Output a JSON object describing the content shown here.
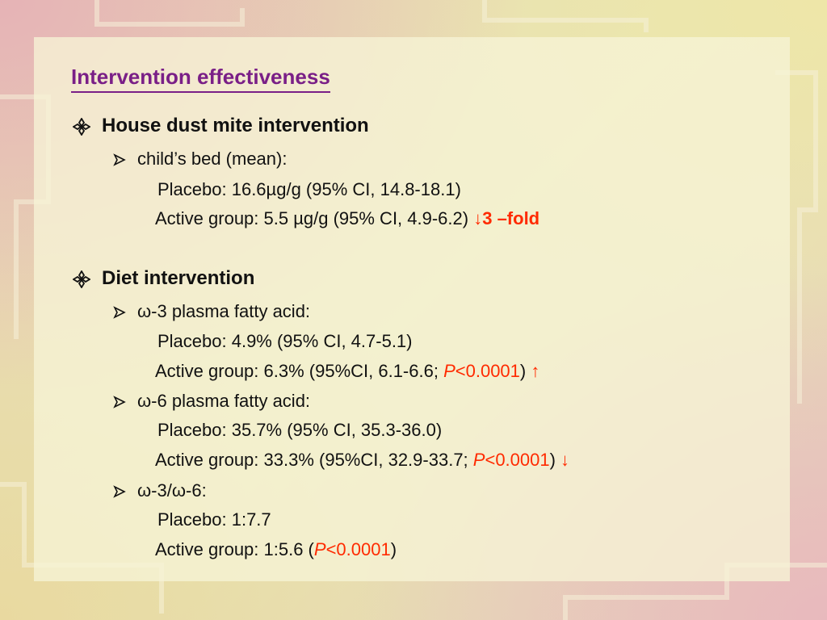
{
  "slide": {
    "title": "Intervention effectiveness",
    "section_mite": {
      "heading": "House dust mite intervention",
      "sub": {
        "label": "child’s bed (mean):",
        "placebo": "Placebo: 16.6µg/g (95% CI, 14.8-18.1)",
        "active": "Active group: 5.5 µg/g  (95% CI, 4.9-6.2) ",
        "active_change": "↓3 –fold"
      }
    },
    "section_diet": {
      "heading": "Diet intervention",
      "omega3": {
        "label": "ω-3 plasma fatty acid:",
        "placebo": "Placebo: 4.9% (95% CI, 4.7-5.1)",
        "active_prefix": "Active group: 6.3% (95%CI, 6.1-6.6; ",
        "p_letter": "P",
        "p_value": "<0.0001",
        "close": ")",
        "arrow": " ↑"
      },
      "omega6": {
        "label": "ω-6 plasma fatty acid:",
        "placebo": "Placebo: 35.7% (95% CI, 35.3-36.0)",
        "active_prefix": "Active group: 33.3% (95%CI, 32.9-33.7; ",
        "p_letter": "P",
        "p_value": "<0.0001",
        "close": ")",
        "arrow": " ↓"
      },
      "ratio": {
        "label": "ω-3/ω-6:",
        "placebo": "Placebo: 1:7.7",
        "active_prefix": "Active group: 1:5.6 (",
        "p_letter": "P",
        "p_value": "<0.0001",
        "close": ")"
      }
    }
  },
  "colors": {
    "title": "#7a1f87",
    "highlight": "#ff2a00",
    "text": "#111111"
  },
  "icons": {
    "heading_bullet": "diamond-bullet-icon",
    "sub_bullet": "arrowhead-bullet-icon"
  }
}
